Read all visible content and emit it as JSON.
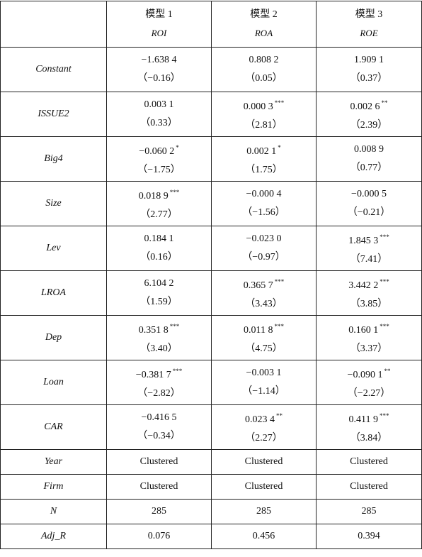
{
  "columns": [
    {
      "model": "模型 1",
      "dependent": "ROI"
    },
    {
      "model": "模型 2",
      "dependent": "ROA"
    },
    {
      "model": "模型 3",
      "dependent": "ROE"
    }
  ],
  "rows": [
    {
      "label": "Constant",
      "cells": [
        {
          "coef": "−1.638 4",
          "t": "（−0.16）"
        },
        {
          "coef": "0.808 2",
          "t": "（0.05）"
        },
        {
          "coef": "1.909 1",
          "t": "（0.37）"
        }
      ]
    },
    {
      "label": "ISSUE2",
      "cells": [
        {
          "coef": "0.003 1",
          "t": "（0.33）"
        },
        {
          "coef": "0.000 3",
          "stars": "***",
          "t": "（2.81）"
        },
        {
          "coef": "0.002 6",
          "stars": "**",
          "t": "（2.39）"
        }
      ]
    },
    {
      "label": "Big4",
      "cells": [
        {
          "coef": "−0.060 2",
          "stars": "*",
          "t": "（−1.75）"
        },
        {
          "coef": "0.002 1",
          "stars": "*",
          "t": "（1.75）"
        },
        {
          "coef": "0.008 9",
          "t": "（0.77）"
        }
      ]
    },
    {
      "label": "Size",
      "cells": [
        {
          "coef": "0.018 9",
          "stars": "***",
          "t": "（2.77）"
        },
        {
          "coef": "−0.000 4",
          "t": "（−1.56）"
        },
        {
          "coef": "−0.000 5",
          "t": "（−0.21）"
        }
      ]
    },
    {
      "label": "Lev",
      "cells": [
        {
          "coef": "0.184 1",
          "t": "（0.16）"
        },
        {
          "coef": "−0.023 0",
          "t": "（−0.97）"
        },
        {
          "coef": "1.845 3",
          "stars": "***",
          "t": "（7.41）"
        }
      ]
    },
    {
      "label": "LROA",
      "cells": [
        {
          "coef": "6.104 2",
          "t": "（1.59）"
        },
        {
          "coef": "0.365 7",
          "stars": "***",
          "t": "（3.43）"
        },
        {
          "coef": "3.442 2",
          "stars": "***",
          "t": "（3.85）"
        }
      ]
    },
    {
      "label": "Dep",
      "cells": [
        {
          "coef": "0.351 8",
          "stars": "***",
          "t": "（3.40）"
        },
        {
          "coef": "0.011 8",
          "stars": "***",
          "t": "（4.75）"
        },
        {
          "coef": "0.160 1",
          "stars": "***",
          "t": "（3.37）"
        }
      ]
    },
    {
      "label": "Loan",
      "cells": [
        {
          "coef": "−0.381 7",
          "stars": "***",
          "t": "（−2.82）"
        },
        {
          "coef": "−0.003 1",
          "t": "（−1.14）"
        },
        {
          "coef": "−0.090 1",
          "stars": "**",
          "t": "（−2.27）"
        }
      ]
    },
    {
      "label": "CAR",
      "cells": [
        {
          "coef": "−0.416 5",
          "t": "（−0.34）"
        },
        {
          "coef": "0.023 4",
          "stars": "**",
          "t": "（2.27）"
        },
        {
          "coef": "0.411 9",
          "stars": "***",
          "t": "（3.84）"
        }
      ]
    },
    {
      "label": "Year",
      "cells": [
        "Clustered",
        "Clustered",
        "Clustered"
      ]
    },
    {
      "label": "Firm",
      "cells": [
        "Clustered",
        "Clustered",
        "Clustered"
      ]
    },
    {
      "label": "N",
      "cells": [
        "285",
        "285",
        "285"
      ]
    },
    {
      "label": "Adj_R",
      "cells": [
        "0.076",
        "0.456",
        "0.394"
      ]
    }
  ]
}
